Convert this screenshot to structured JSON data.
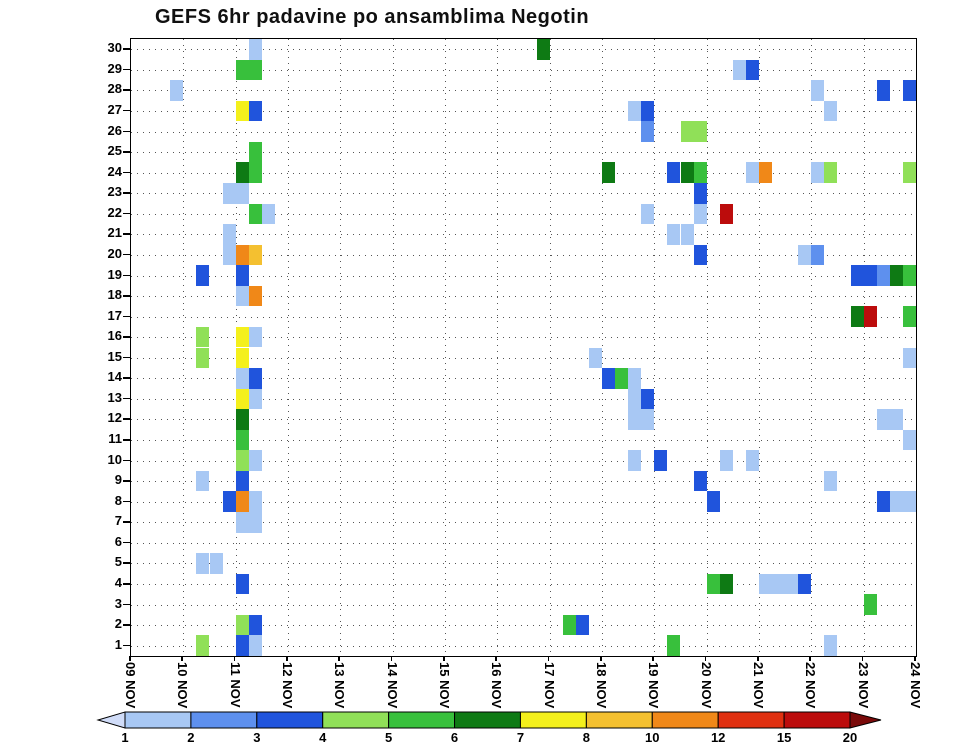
{
  "chart_data": {
    "type": "heatmap",
    "title": "GEFS 6hr padavine po ansamblima Negotin",
    "x_axis": {
      "tick_labels": [
        "09 NOV",
        "10 NOV",
        "11 NOV",
        "12 NOV",
        "13 NOV",
        "14 NOV",
        "15 NOV",
        "16 NOV",
        "17 NOV",
        "18 NOV",
        "19 NOV",
        "20 NOV",
        "21 NOV",
        "22 NOV",
        "23 NOV",
        "24 NOV"
      ],
      "steps_per_day": 4
    },
    "y_axis": {
      "label_min": 1,
      "label_max": 30
    },
    "legend": {
      "tick_labels": [
        "1",
        "2",
        "3",
        "4",
        "5",
        "6",
        "7",
        "8",
        "10",
        "12",
        "15",
        "20"
      ],
      "colors": [
        "#d0dcf8",
        "#a8c8f4",
        "#5e90ee",
        "#2054dc",
        "#90e058",
        "#38c03c",
        "#0e7a14",
        "#f4f01c",
        "#f4c030",
        "#f08818",
        "#e03010",
        "#bc0c0c",
        "#7a0a0a"
      ],
      "arrow_left": true,
      "arrow_right": true
    },
    "cells_schema": "member, day_index (0 = 09 NOV), quarter (6h step 0-3), color_index into legend.colors",
    "cells": [
      [
        30,
        2,
        1,
        1
      ],
      [
        30,
        7,
        3,
        6
      ],
      [
        29,
        2,
        0,
        5
      ],
      [
        29,
        2,
        1,
        5
      ],
      [
        29,
        11,
        2,
        1
      ],
      [
        29,
        11,
        3,
        3
      ],
      [
        28,
        0,
        3,
        1
      ],
      [
        28,
        13,
        0,
        1
      ],
      [
        28,
        14,
        1,
        3
      ],
      [
        28,
        14,
        3,
        3
      ],
      [
        27,
        2,
        0,
        7
      ],
      [
        27,
        2,
        1,
        3
      ],
      [
        27,
        9,
        2,
        1
      ],
      [
        27,
        9,
        3,
        3
      ],
      [
        27,
        13,
        1,
        1
      ],
      [
        26,
        9,
        3,
        2
      ],
      [
        26,
        10,
        2,
        4
      ],
      [
        26,
        10,
        3,
        4
      ],
      [
        25,
        2,
        1,
        5
      ],
      [
        24,
        2,
        0,
        6
      ],
      [
        24,
        2,
        1,
        5
      ],
      [
        24,
        9,
        0,
        6
      ],
      [
        24,
        10,
        1,
        3
      ],
      [
        24,
        10,
        2,
        6
      ],
      [
        24,
        10,
        3,
        5
      ],
      [
        24,
        11,
        3,
        1
      ],
      [
        24,
        12,
        0,
        9
      ],
      [
        24,
        13,
        0,
        1
      ],
      [
        24,
        13,
        1,
        4
      ],
      [
        24,
        14,
        3,
        4
      ],
      [
        23,
        1,
        3,
        1
      ],
      [
        23,
        2,
        0,
        1
      ],
      [
        23,
        10,
        3,
        3
      ],
      [
        22,
        2,
        1,
        5
      ],
      [
        22,
        2,
        2,
        1
      ],
      [
        22,
        9,
        3,
        1
      ],
      [
        22,
        10,
        3,
        1
      ],
      [
        22,
        11,
        1,
        11
      ],
      [
        21,
        1,
        3,
        1
      ],
      [
        21,
        10,
        1,
        1
      ],
      [
        21,
        10,
        2,
        1
      ],
      [
        20,
        1,
        3,
        1
      ],
      [
        20,
        2,
        0,
        9
      ],
      [
        20,
        2,
        1,
        8
      ],
      [
        20,
        10,
        3,
        3
      ],
      [
        20,
        12,
        3,
        1
      ],
      [
        20,
        13,
        0,
        2
      ],
      [
        19,
        1,
        1,
        3
      ],
      [
        19,
        2,
        0,
        3
      ],
      [
        19,
        13,
        3,
        3
      ],
      [
        19,
        14,
        0,
        3
      ],
      [
        19,
        14,
        1,
        2
      ],
      [
        19,
        14,
        2,
        6
      ],
      [
        19,
        14,
        3,
        5
      ],
      [
        18,
        2,
        0,
        1
      ],
      [
        18,
        2,
        1,
        9
      ],
      [
        17,
        13,
        3,
        6
      ],
      [
        17,
        14,
        0,
        11
      ],
      [
        17,
        14,
        3,
        5
      ],
      [
        16,
        1,
        1,
        4
      ],
      [
        16,
        2,
        0,
        7
      ],
      [
        16,
        2,
        1,
        1
      ],
      [
        15,
        1,
        1,
        4
      ],
      [
        15,
        2,
        0,
        7
      ],
      [
        15,
        8,
        3,
        1
      ],
      [
        15,
        14,
        3,
        1
      ],
      [
        14,
        2,
        0,
        1
      ],
      [
        14,
        2,
        1,
        3
      ],
      [
        14,
        9,
        0,
        3
      ],
      [
        14,
        9,
        1,
        5
      ],
      [
        14,
        9,
        2,
        1
      ],
      [
        13,
        2,
        0,
        7
      ],
      [
        13,
        2,
        1,
        1
      ],
      [
        13,
        9,
        2,
        1
      ],
      [
        13,
        9,
        3,
        3
      ],
      [
        12,
        2,
        0,
        6
      ],
      [
        12,
        9,
        2,
        1
      ],
      [
        12,
        9,
        3,
        1
      ],
      [
        12,
        14,
        1,
        1
      ],
      [
        12,
        14,
        2,
        1
      ],
      [
        11,
        2,
        0,
        5
      ],
      [
        11,
        14,
        3,
        1
      ],
      [
        10,
        2,
        0,
        4
      ],
      [
        10,
        2,
        1,
        1
      ],
      [
        10,
        9,
        2,
        1
      ],
      [
        10,
        10,
        0,
        3
      ],
      [
        10,
        11,
        1,
        1
      ],
      [
        10,
        11,
        3,
        1
      ],
      [
        9,
        1,
        1,
        1
      ],
      [
        9,
        2,
        0,
        3
      ],
      [
        9,
        10,
        3,
        3
      ],
      [
        9,
        13,
        1,
        1
      ],
      [
        8,
        1,
        3,
        3
      ],
      [
        8,
        2,
        0,
        9
      ],
      [
        8,
        2,
        1,
        1
      ],
      [
        8,
        11,
        0,
        3
      ],
      [
        8,
        14,
        1,
        3
      ],
      [
        8,
        14,
        2,
        1
      ],
      [
        8,
        14,
        3,
        1
      ],
      [
        7,
        2,
        0,
        1
      ],
      [
        7,
        2,
        1,
        1
      ],
      [
        5,
        1,
        1,
        1
      ],
      [
        5,
        1,
        2,
        1
      ],
      [
        4,
        2,
        0,
        3
      ],
      [
        4,
        11,
        0,
        5
      ],
      [
        4,
        11,
        1,
        6
      ],
      [
        4,
        12,
        0,
        1
      ],
      [
        4,
        12,
        1,
        1
      ],
      [
        4,
        12,
        2,
        1
      ],
      [
        4,
        12,
        3,
        3
      ],
      [
        3,
        14,
        0,
        5
      ],
      [
        2,
        2,
        0,
        4
      ],
      [
        2,
        2,
        1,
        3
      ],
      [
        2,
        8,
        1,
        5
      ],
      [
        2,
        8,
        2,
        3
      ],
      [
        1,
        1,
        1,
        4
      ],
      [
        1,
        2,
        0,
        3
      ],
      [
        1,
        2,
        1,
        1
      ],
      [
        1,
        10,
        1,
        5
      ],
      [
        1,
        13,
        1,
        1
      ]
    ]
  }
}
